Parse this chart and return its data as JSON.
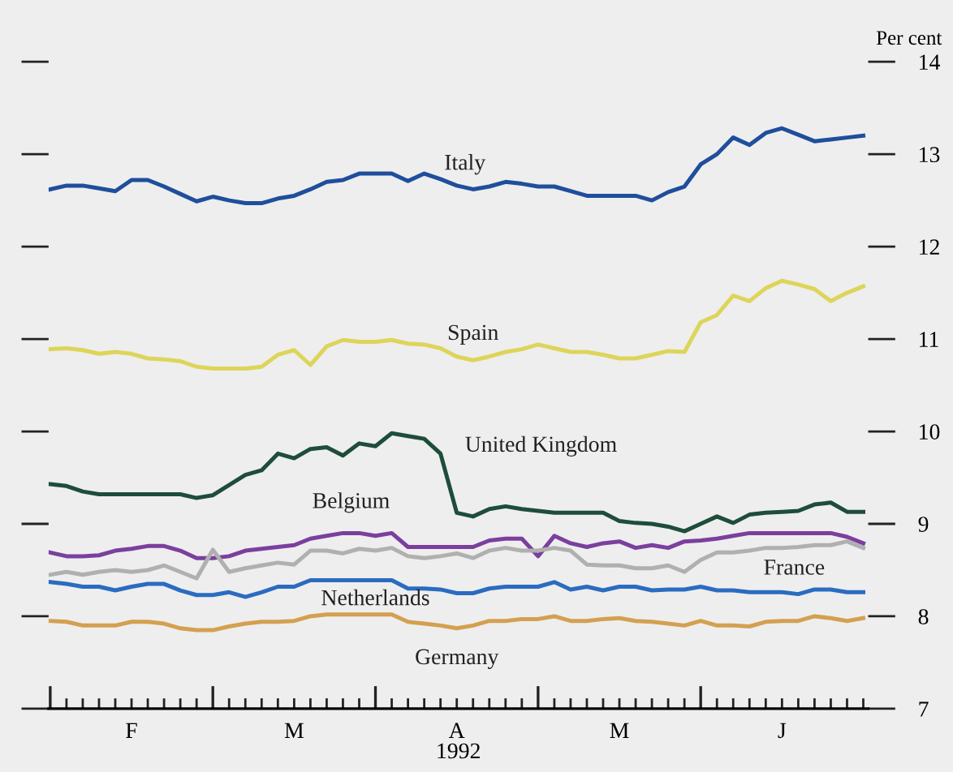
{
  "chart_data": {
    "type": "line",
    "ylabel": "Per cent",
    "xlabel": "1992",
    "categories": [
      null,
      null,
      null,
      null,
      null,
      "F",
      null,
      null,
      null,
      null,
      null,
      null,
      null,
      null,
      null,
      "M",
      null,
      null,
      null,
      null,
      null,
      null,
      null,
      null,
      null,
      "A",
      null,
      null,
      null,
      null,
      null,
      null,
      null,
      null,
      null,
      "M",
      null,
      null,
      null,
      null,
      null,
      null,
      null,
      null,
      null,
      "J",
      null,
      null,
      null,
      null,
      null
    ],
    "series": [
      {
        "name": "Italy",
        "color": "#1f4e9c",
        "values": [
          12.62,
          12.66,
          12.66,
          12.63,
          12.6,
          12.72,
          12.72,
          12.65,
          12.57,
          12.49,
          12.54,
          12.5,
          12.47,
          12.47,
          12.52,
          12.55,
          12.62,
          12.7,
          12.72,
          12.79,
          12.79,
          12.79,
          12.71,
          12.79,
          12.73,
          12.66,
          12.62,
          12.65,
          12.7,
          12.68,
          12.65,
          12.65,
          12.6,
          12.55,
          12.55,
          12.55,
          12.55,
          12.5,
          12.59,
          12.65,
          12.89,
          13.0,
          13.18,
          13.1,
          13.23,
          13.28,
          13.21,
          13.14,
          13.16,
          13.18,
          13.2
        ]
      },
      {
        "name": "Spain",
        "color": "#ddd55a",
        "values": [
          10.89,
          10.9,
          10.88,
          10.84,
          10.86,
          10.84,
          10.79,
          10.78,
          10.76,
          10.7,
          10.68,
          10.68,
          10.68,
          10.7,
          10.83,
          10.88,
          10.72,
          10.92,
          10.99,
          10.97,
          10.97,
          10.99,
          10.95,
          10.94,
          10.9,
          10.81,
          10.77,
          10.81,
          10.86,
          10.89,
          10.94,
          10.9,
          10.86,
          10.86,
          10.83,
          10.79,
          10.79,
          10.83,
          10.87,
          10.86,
          11.18,
          11.26,
          11.47,
          11.41,
          11.55,
          11.63,
          11.59,
          11.54,
          11.41,
          11.5,
          11.57
        ]
      },
      {
        "name": "United Kingdom",
        "color": "#1e4d3a",
        "values": [
          9.43,
          9.41,
          9.35,
          9.32,
          9.32,
          9.32,
          9.32,
          9.32,
          9.32,
          9.28,
          9.31,
          9.42,
          9.53,
          9.58,
          9.76,
          9.71,
          9.81,
          9.83,
          9.74,
          9.87,
          9.84,
          9.98,
          9.95,
          9.92,
          9.76,
          9.12,
          9.08,
          9.16,
          9.19,
          9.16,
          9.14,
          9.12,
          9.12,
          9.12,
          9.12,
          9.03,
          9.01,
          9.0,
          8.97,
          8.92,
          9.0,
          9.08,
          9.01,
          9.1,
          9.12,
          9.13,
          9.14,
          9.21,
          9.23,
          9.13,
          9.13
        ]
      },
      {
        "name": "Belgium",
        "color": "#7b3f9e",
        "values": [
          8.69,
          8.65,
          8.65,
          8.66,
          8.71,
          8.73,
          8.76,
          8.76,
          8.71,
          8.63,
          8.63,
          8.65,
          8.71,
          8.73,
          8.75,
          8.77,
          8.84,
          8.87,
          8.9,
          8.9,
          8.87,
          8.9,
          8.75,
          8.75,
          8.75,
          8.75,
          8.75,
          8.82,
          8.84,
          8.84,
          8.65,
          8.87,
          8.79,
          8.75,
          8.79,
          8.81,
          8.74,
          8.77,
          8.74,
          8.81,
          8.82,
          8.84,
          8.87,
          8.9,
          8.9,
          8.9,
          8.9,
          8.9,
          8.9,
          8.86,
          8.79
        ]
      },
      {
        "name": "France",
        "color": "#b0b0b0",
        "values": [
          8.45,
          8.48,
          8.45,
          8.48,
          8.5,
          8.48,
          8.5,
          8.55,
          8.48,
          8.41,
          8.72,
          8.48,
          8.52,
          8.55,
          8.58,
          8.56,
          8.71,
          8.71,
          8.68,
          8.73,
          8.71,
          8.74,
          8.65,
          8.63,
          8.65,
          8.68,
          8.63,
          8.71,
          8.74,
          8.71,
          8.71,
          8.74,
          8.71,
          8.56,
          8.55,
          8.55,
          8.52,
          8.52,
          8.55,
          8.48,
          8.61,
          8.69,
          8.69,
          8.71,
          8.74,
          8.74,
          8.75,
          8.77,
          8.77,
          8.81,
          8.74
        ]
      },
      {
        "name": "Netherlands",
        "color": "#2a6cc0",
        "values": [
          8.37,
          8.35,
          8.32,
          8.32,
          8.28,
          8.32,
          8.35,
          8.35,
          8.28,
          8.23,
          8.23,
          8.26,
          8.21,
          8.26,
          8.32,
          8.32,
          8.39,
          8.39,
          8.39,
          8.39,
          8.39,
          8.39,
          8.3,
          8.3,
          8.29,
          8.25,
          8.25,
          8.3,
          8.32,
          8.32,
          8.32,
          8.37,
          8.29,
          8.32,
          8.28,
          8.32,
          8.32,
          8.28,
          8.29,
          8.29,
          8.32,
          8.28,
          8.28,
          8.26,
          8.26,
          8.26,
          8.24,
          8.29,
          8.29,
          8.26,
          8.26
        ]
      },
      {
        "name": "Germany",
        "color": "#d4a050",
        "values": [
          7.95,
          7.94,
          7.9,
          7.9,
          7.9,
          7.94,
          7.94,
          7.92,
          7.87,
          7.85,
          7.85,
          7.89,
          7.92,
          7.94,
          7.94,
          7.95,
          8.0,
          8.02,
          8.02,
          8.02,
          8.02,
          8.02,
          7.94,
          7.92,
          7.9,
          7.87,
          7.9,
          7.95,
          7.95,
          7.97,
          7.97,
          8.0,
          7.95,
          7.95,
          7.97,
          7.98,
          7.95,
          7.94,
          7.92,
          7.9,
          7.95,
          7.9,
          7.9,
          7.89,
          7.94,
          7.95,
          7.95,
          8.0,
          7.98,
          7.95,
          7.98
        ]
      }
    ],
    "ylim": [
      7,
      14
    ],
    "yticks": [
      7,
      8,
      9,
      10,
      11,
      12,
      13,
      14
    ],
    "grid": false,
    "legend": false,
    "marker": "none",
    "line_style": "solid"
  }
}
